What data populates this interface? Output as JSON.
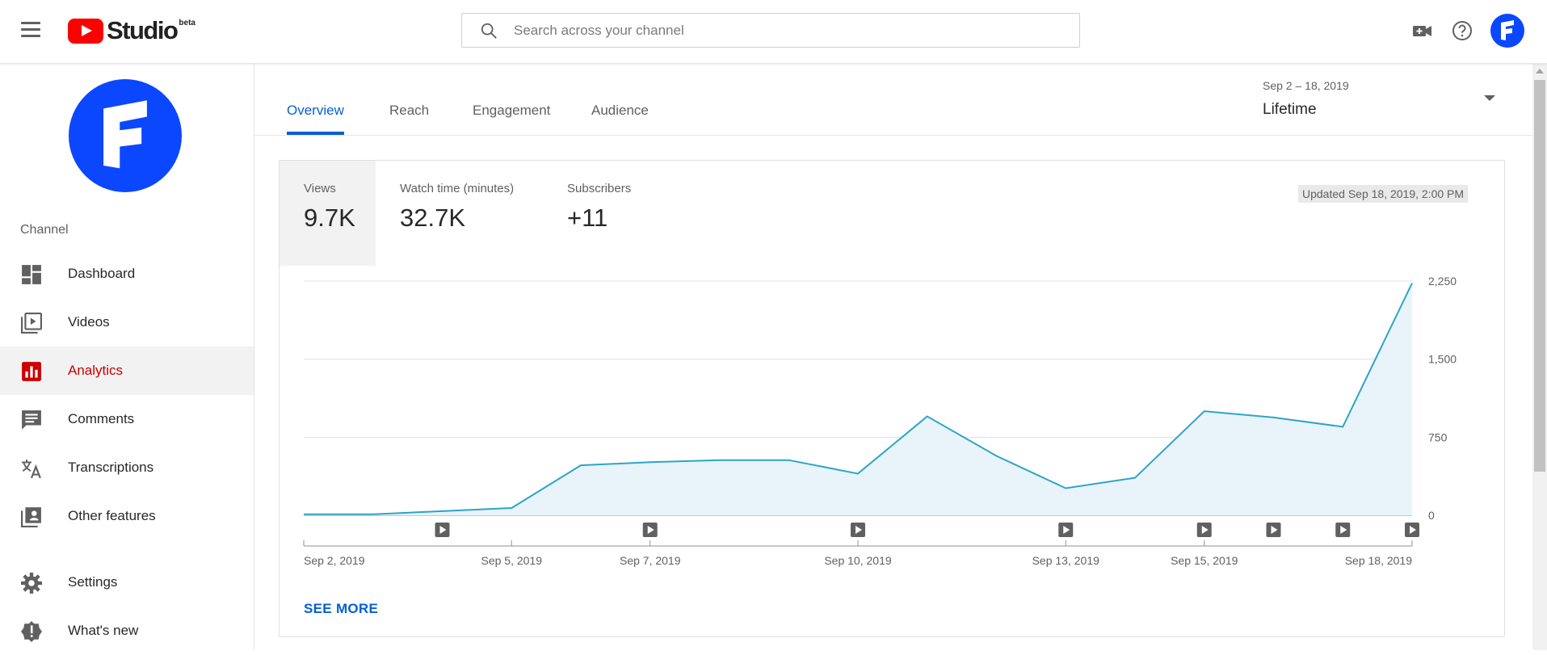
{
  "header": {
    "menu_icon": "hamburger-icon",
    "brand": "Studio",
    "beta": "beta",
    "search_placeholder": "Search across your channel",
    "icons": [
      "create-video-icon",
      "help-icon",
      "account-avatar"
    ],
    "brand_color": "#ff0000",
    "avatar_color": "#0b47ff"
  },
  "sidebar": {
    "section_label": "Channel",
    "items": [
      {
        "label": "Dashboard",
        "icon": "dashboard-icon",
        "active": false
      },
      {
        "label": "Videos",
        "icon": "videos-icon",
        "active": false
      },
      {
        "label": "Analytics",
        "icon": "analytics-icon",
        "active": true
      },
      {
        "label": "Comments",
        "icon": "comments-icon",
        "active": false
      },
      {
        "label": "Transcriptions",
        "icon": "transcriptions-icon",
        "active": false
      },
      {
        "label": "Other features",
        "icon": "other-features-icon",
        "active": false
      },
      {
        "label": "Settings",
        "icon": "settings-icon",
        "active": false
      },
      {
        "label": "What's new",
        "icon": "whats-new-icon",
        "active": false
      }
    ]
  },
  "tabs": [
    {
      "label": "Overview",
      "active": true
    },
    {
      "label": "Reach",
      "active": false
    },
    {
      "label": "Engagement",
      "active": false
    },
    {
      "label": "Audience",
      "active": false
    }
  ],
  "date_picker": {
    "range": "Sep 2 – 18, 2019",
    "selected": "Lifetime"
  },
  "metrics": [
    {
      "label": "Views",
      "value": "9.7K",
      "selected": true
    },
    {
      "label": "Watch time (minutes)",
      "value": "32.7K",
      "selected": false
    },
    {
      "label": "Subscribers",
      "value": "+11",
      "selected": false
    }
  ],
  "updated_text": "Updated Sep 18, 2019, 2:00 PM",
  "see_more": "SEE MORE",
  "chart_data": {
    "type": "area",
    "x": [
      "Sep 2",
      "Sep 3",
      "Sep 4",
      "Sep 5",
      "Sep 6",
      "Sep 7",
      "Sep 8",
      "Sep 9",
      "Sep 10",
      "Sep 11",
      "Sep 12",
      "Sep 13",
      "Sep 14",
      "Sep 15",
      "Sep 16",
      "Sep 17",
      "Sep 18"
    ],
    "series": [
      {
        "values": [
          10,
          10,
          40,
          70,
          480,
          510,
          530,
          530,
          400,
          950,
          570,
          260,
          360,
          1000,
          940,
          850,
          2230
        ]
      }
    ],
    "x_tick_labels": [
      {
        "index": 0,
        "label": "Sep 2, 2019"
      },
      {
        "index": 3,
        "label": "Sep 5, 2019"
      },
      {
        "index": 5,
        "label": "Sep 7, 2019"
      },
      {
        "index": 8,
        "label": "Sep 10, 2019"
      },
      {
        "index": 11,
        "label": "Sep 13, 2019"
      },
      {
        "index": 13,
        "label": "Sep 15, 2019"
      },
      {
        "index": 16,
        "label": "Sep 18, 2019"
      }
    ],
    "y_ticks": [
      0,
      750,
      1500,
      2250
    ],
    "y_tick_labels": [
      "0",
      "750",
      "1,500",
      "2,250"
    ],
    "ylim": [
      0,
      2250
    ],
    "video_markers": [
      2,
      5,
      8,
      11,
      13,
      14,
      15,
      16
    ],
    "grid": true,
    "line_color": "#2ea4c9",
    "fill_color": "#e8f4f9"
  }
}
